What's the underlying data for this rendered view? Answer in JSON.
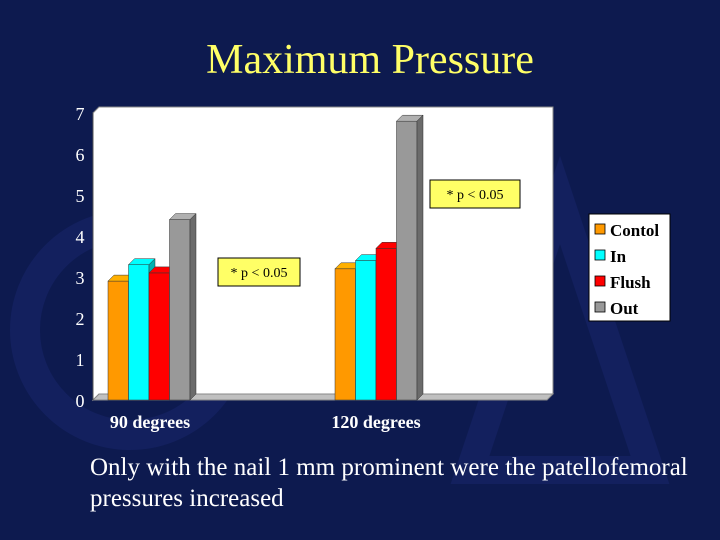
{
  "slide": {
    "title": "Maximum Pressure",
    "caption": "Only with the nail 1 mm prominent were the patellofemoral pressures increased",
    "background_color": "#0d1a4f",
    "title_color": "#ffff66"
  },
  "chart_data": {
    "type": "bar",
    "title": "",
    "xlabel": "",
    "ylabel": "",
    "categories": [
      "90 degrees",
      "120 degrees"
    ],
    "ylim": [
      0,
      7
    ],
    "yticks": [
      0,
      1,
      2,
      3,
      4,
      5,
      6,
      7
    ],
    "grid": false,
    "three_d": true,
    "series": [
      {
        "name": "Contol",
        "color": "#ff9900",
        "values": [
          2.9,
          3.2
        ]
      },
      {
        "name": "In",
        "color": "#00ffff",
        "values": [
          3.3,
          3.4
        ]
      },
      {
        "name": "Flush",
        "color": "#ff0000",
        "values": [
          3.1,
          3.7
        ]
      },
      {
        "name": "Out",
        "color": "#999999",
        "values": [
          4.4,
          6.8
        ]
      }
    ],
    "legend": {
      "position": "right"
    },
    "annotations": [
      {
        "text": "* p < 0.05",
        "category": "90 degrees"
      },
      {
        "text": "* p < 0.05",
        "category": "120 degrees"
      }
    ]
  }
}
